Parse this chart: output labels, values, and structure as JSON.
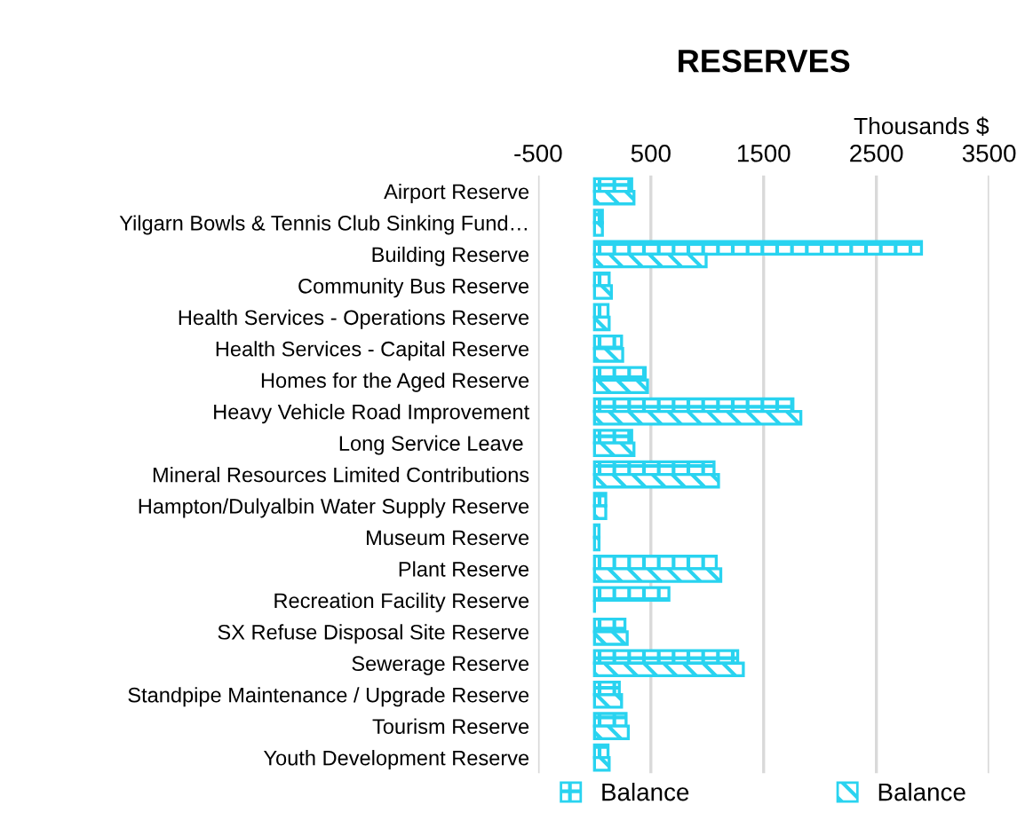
{
  "chart_data": {
    "type": "bar",
    "orientation": "horizontal",
    "title": "RESERVES",
    "xlabel": "Thousands $",
    "categories": [
      "Airport Reserve",
      "Yilgarn Bowls & Tennis Club Sinking Fund…",
      "Building Reserve",
      "Community Bus Reserve",
      "Health Services - Operations Reserve",
      "Health Services - Capital Reserve",
      "Homes for the Aged Reserve",
      "Heavy Vehicle Road Improvement",
      "Long Service Leave ",
      "Mineral Resources Limited Contributions",
      "Hampton/Dulyalbin Water Supply Reserve",
      "Museum Reserve",
      "Plant Reserve",
      "Recreation Facility Reserve",
      "SX Refuse Disposal Site Reserve",
      "Sewerage Reserve",
      "Standpipe Maintenance / Upgrade Reserve",
      "Tourism Reserve",
      "Youth Development Reserve"
    ],
    "series": [
      {
        "name": "Balance",
        "color": "#29d3f0",
        "values": [
          330,
          70,
          2900,
          130,
          120,
          240,
          450,
          1760,
          330,
          1060,
          100,
          40,
          1080,
          660,
          270,
          1270,
          220,
          280,
          120
        ]
      },
      {
        "name": "Balance",
        "color": "#29d3f0",
        "values": [
          350,
          70,
          990,
          150,
          130,
          250,
          470,
          1830,
          350,
          1100,
          100,
          40,
          1120,
          0,
          290,
          1320,
          240,
          300,
          130
        ]
      }
    ],
    "xlim": [
      -500,
      3500
    ],
    "xticks": [
      -500,
      500,
      1500,
      2500,
      3500
    ],
    "grid": "x",
    "legend": "bottom"
  }
}
